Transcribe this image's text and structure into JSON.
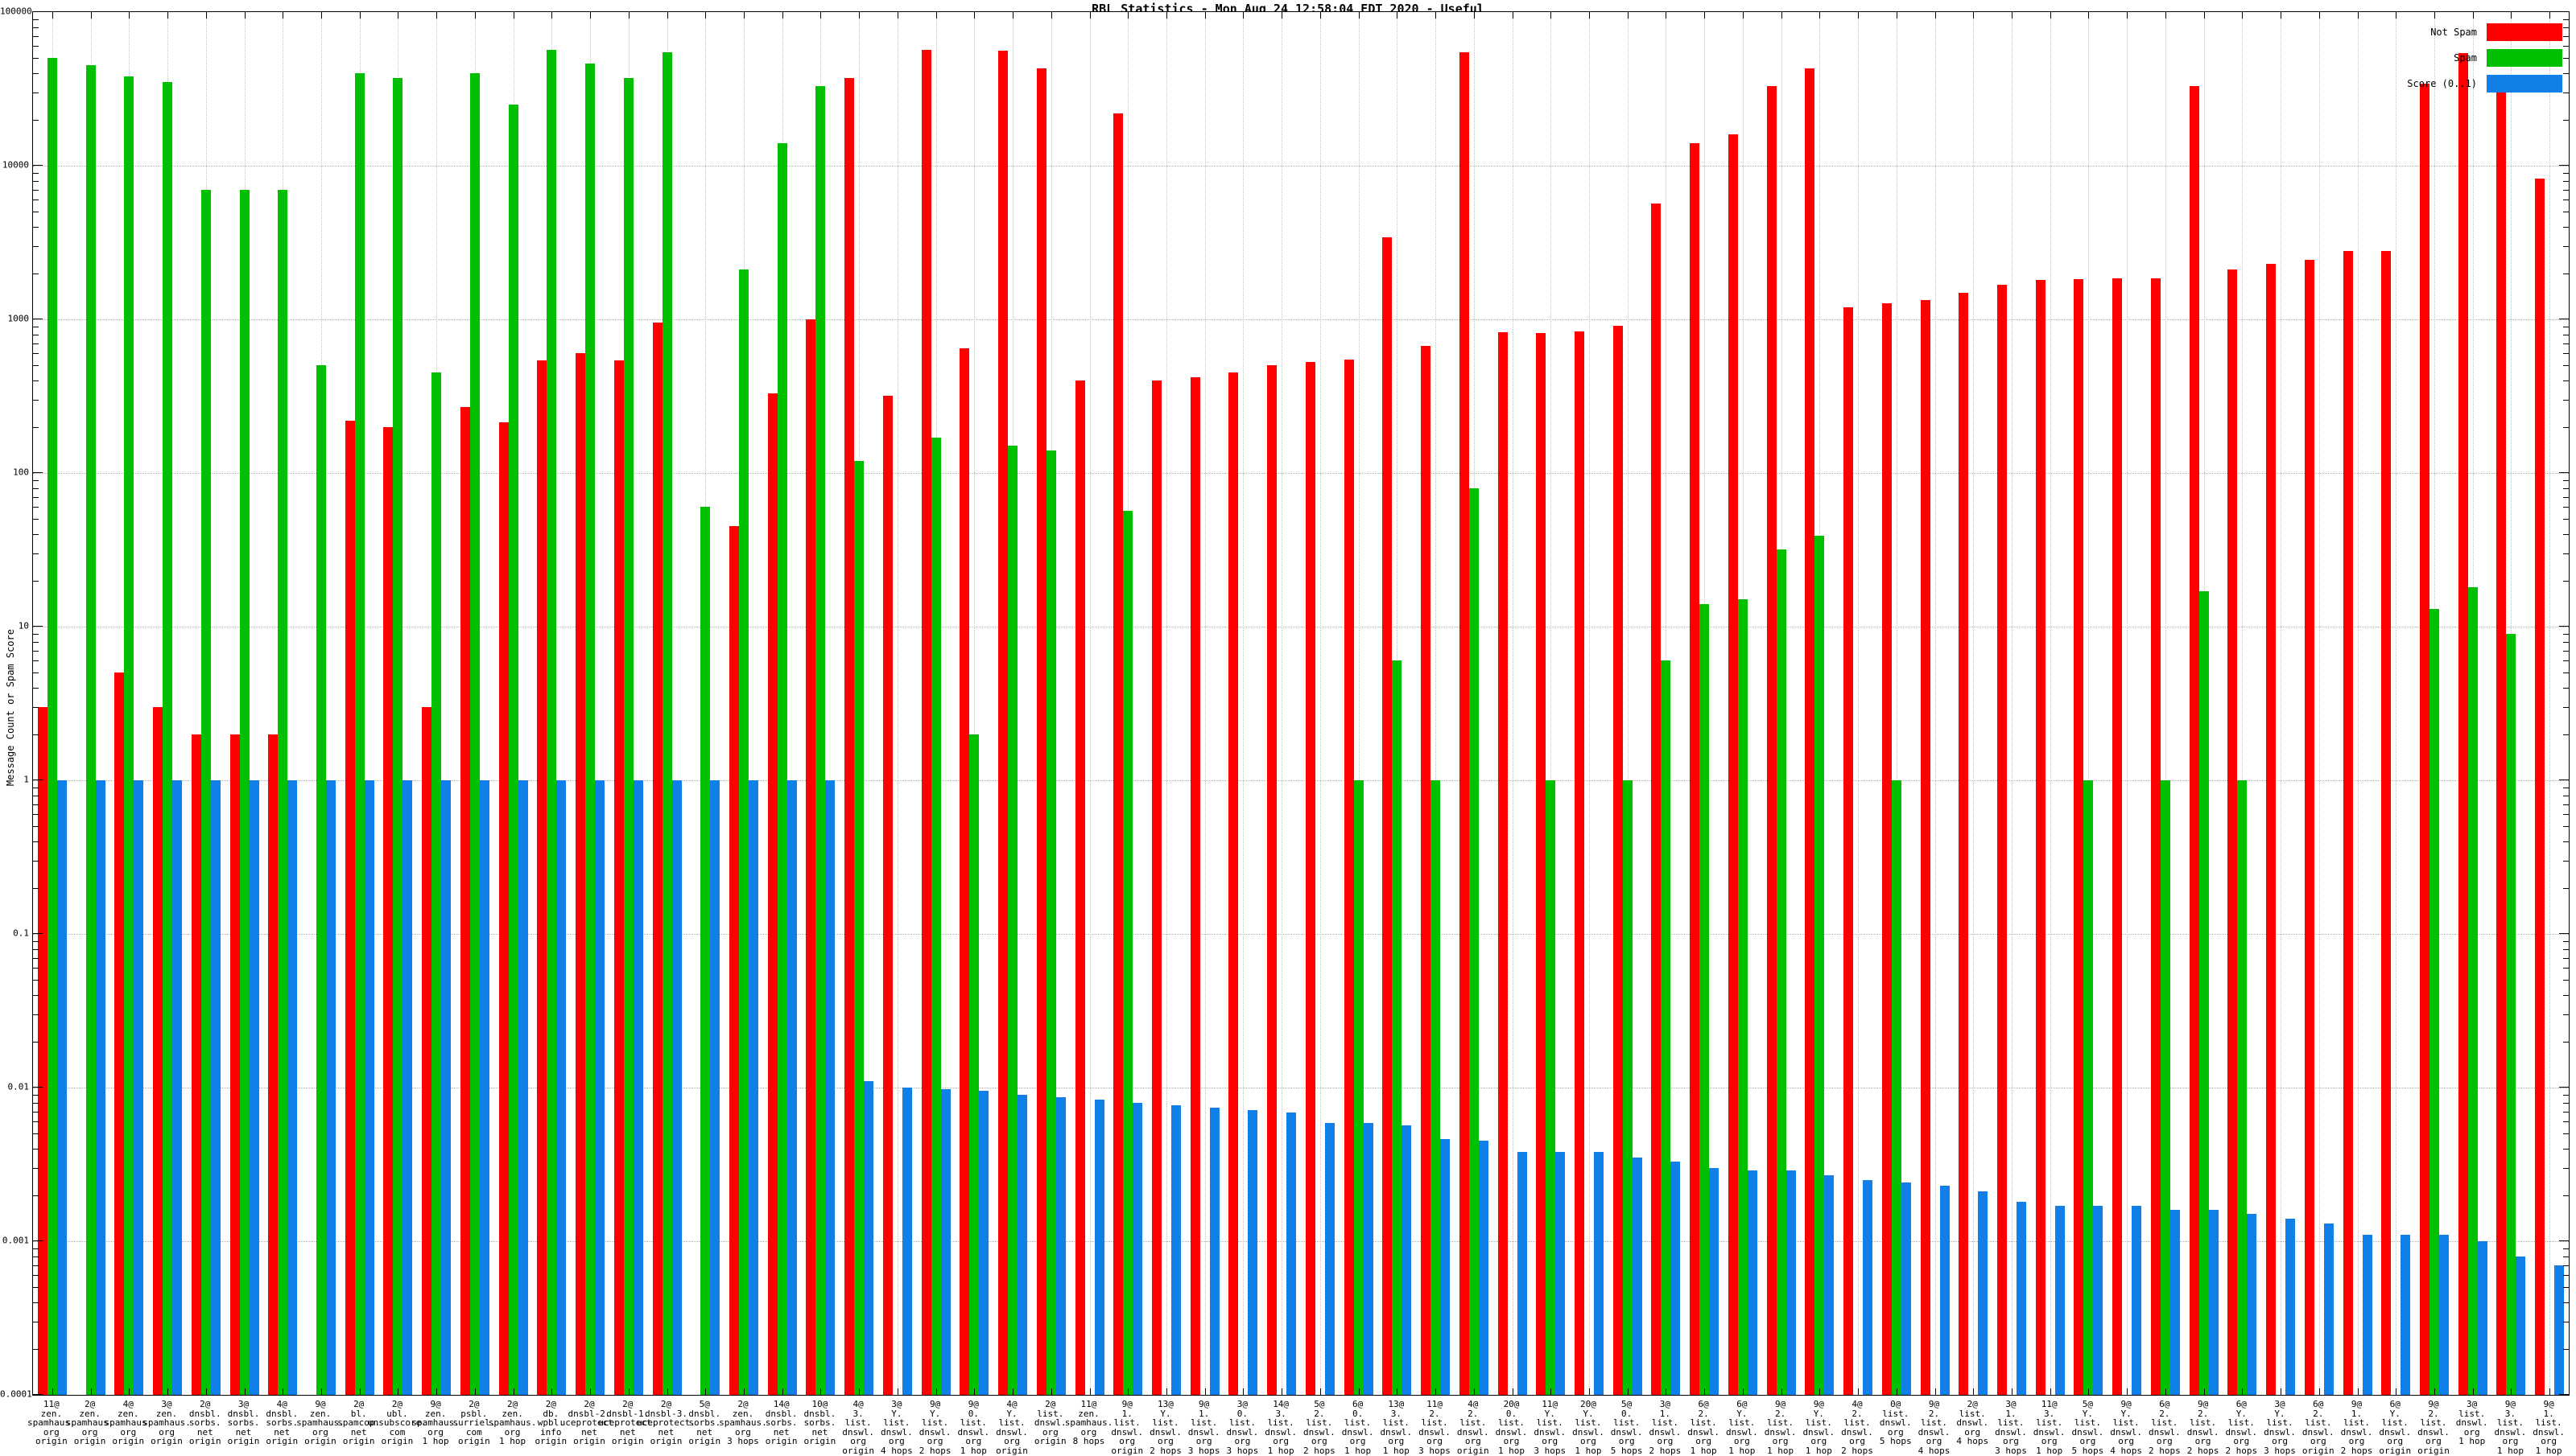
{
  "chart_data": {
    "type": "bar",
    "scale": "log-y",
    "title": "RBL Statistics - Mon Aug 24 12:58:04 EDT 2020 - Useful",
    "ylabel": "Message Count or Spam Score",
    "xlabel": "",
    "ylim": [
      0.0001,
      100000
    ],
    "grid": true,
    "legend_position": "top-right",
    "y_ticks": [
      "100000",
      "10000",
      "1000",
      "100",
      "10",
      "1",
      "0.1",
      "0.01",
      "0.001",
      "0.0001"
    ],
    "series": [
      {
        "name": "Not Spam",
        "key": "not_spam",
        "color": "#ff0000"
      },
      {
        "name": "Spam",
        "key": "spam",
        "color": "#00c000"
      },
      {
        "name": "Score (0..1)",
        "key": "score",
        "color": "#1080e8"
      }
    ],
    "groups": [
      {
        "label": [
          "11@",
          "zen.",
          "spamhaus.",
          "org",
          "origin"
        ],
        "not_spam": 3,
        "spam": 50000,
        "score": 1
      },
      {
        "label": [
          "2@",
          "zen.",
          "spamhaus.",
          "org",
          "origin"
        ],
        "not_spam": 0,
        "spam": 45000,
        "score": 1
      },
      {
        "label": [
          "4@",
          "zen.",
          "spamhaus.",
          "org",
          "origin"
        ],
        "not_spam": 5,
        "spam": 38000,
        "score": 1
      },
      {
        "label": [
          "3@",
          "zen.",
          "spamhaus.",
          "org",
          "origin"
        ],
        "not_spam": 3,
        "spam": 35000,
        "score": 1
      },
      {
        "label": [
          "2@",
          "dnsbl.",
          "sorbs.",
          "net",
          "origin"
        ],
        "not_spam": 2,
        "spam": 7000,
        "score": 1
      },
      {
        "label": [
          "3@",
          "dnsbl.",
          "sorbs.",
          "net",
          "origin"
        ],
        "not_spam": 2,
        "spam": 7000,
        "score": 1
      },
      {
        "label": [
          "4@",
          "dnsbl.",
          "sorbs.",
          "net",
          "origin"
        ],
        "not_spam": 2,
        "spam": 7000,
        "score": 1
      },
      {
        "label": [
          "9@",
          "zen.",
          "spamhaus.",
          "org",
          "origin"
        ],
        "not_spam": 0,
        "spam": 500,
        "score": 1
      },
      {
        "label": [
          "2@",
          "bl.",
          "spamcop.",
          "net",
          "origin"
        ],
        "not_spam": 220,
        "spam": 40000,
        "score": 1
      },
      {
        "label": [
          "2@",
          "ubl.",
          "unsubscore.",
          "com",
          "origin"
        ],
        "not_spam": 200,
        "spam": 37000,
        "score": 1
      },
      {
        "label": [
          "9@",
          "zen.",
          "spamhaus.",
          "org",
          "1 hop"
        ],
        "not_spam": 3,
        "spam": 450,
        "score": 1
      },
      {
        "label": [
          "2@",
          "psbl.",
          "surriel.",
          "com",
          "origin"
        ],
        "not_spam": 270,
        "spam": 40000,
        "score": 1
      },
      {
        "label": [
          "2@",
          "zen.",
          "spamhaus.",
          "org",
          "1 hop"
        ],
        "not_spam": 215,
        "spam": 25000,
        "score": 1
      },
      {
        "label": [
          "2@",
          "db.",
          "wpbl.",
          "info",
          "origin"
        ],
        "not_spam": 540,
        "spam": 57000,
        "score": 1
      },
      {
        "label": [
          "2@",
          "dnsbl-2.",
          "uceprotect.",
          "net",
          "origin"
        ],
        "not_spam": 600,
        "spam": 46000,
        "score": 1
      },
      {
        "label": [
          "2@",
          "dnsbl-1.",
          "uceprotect.",
          "net",
          "origin"
        ],
        "not_spam": 540,
        "spam": 37000,
        "score": 1
      },
      {
        "label": [
          "2@",
          "dnsbl-3.",
          "uceprotect.",
          "net",
          "origin"
        ],
        "not_spam": 950,
        "spam": 55000,
        "score": 1
      },
      {
        "label": [
          "5@",
          "dnsbl.",
          "sorbs.",
          "net",
          "origin"
        ],
        "not_spam": 0,
        "spam": 60,
        "score": 1
      },
      {
        "label": [
          "2@",
          "zen.",
          "spamhaus.",
          "org",
          "3 hops"
        ],
        "not_spam": 45,
        "spam": 2100,
        "score": 1
      },
      {
        "label": [
          "14@",
          "dnsbl.",
          "sorbs.",
          "net",
          "origin"
        ],
        "not_spam": 330,
        "spam": 14000,
        "score": 1
      },
      {
        "label": [
          "10@",
          "dnsbl.",
          "sorbs.",
          "net",
          "origin"
        ],
        "not_spam": 1000,
        "spam": 33000,
        "score": 1
      },
      {
        "label": [
          "4@",
          "3.",
          "list.",
          "dnswl.",
          "org",
          "origin"
        ],
        "not_spam": 37000,
        "spam": 120,
        "score": 0.011
      },
      {
        "label": [
          "3@",
          "Y.",
          "list.",
          "dnswl.",
          "org",
          "4 hops"
        ],
        "not_spam": 320,
        "spam": 0,
        "score": 0.01
      },
      {
        "label": [
          "9@",
          "Y.",
          "list.",
          "dnswl.",
          "org",
          "2 hops"
        ],
        "not_spam": 57000,
        "spam": 170,
        "score": 0.0098
      },
      {
        "label": [
          "9@",
          "0.",
          "list.",
          "dnswl.",
          "org",
          "1 hop"
        ],
        "not_spam": 650,
        "spam": 2,
        "score": 0.0095
      },
      {
        "label": [
          "4@",
          "Y.",
          "list.",
          "dnswl.",
          "org",
          "origin"
        ],
        "not_spam": 56000,
        "spam": 150,
        "score": 0.009
      },
      {
        "label": [
          "2@",
          "list.",
          "dnswl.",
          "org",
          "origin"
        ],
        "not_spam": 43000,
        "spam": 140,
        "score": 0.0087
      },
      {
        "label": [
          "11@",
          "zen.",
          "spamhaus.",
          "org",
          "8 hops"
        ],
        "not_spam": 400,
        "spam": 0,
        "score": 0.0083
      },
      {
        "label": [
          "9@",
          "1.",
          "list.",
          "dnswl.",
          "org",
          "origin"
        ],
        "not_spam": 22000,
        "spam": 57,
        "score": 0.008
      },
      {
        "label": [
          "13@",
          "Y.",
          "list.",
          "dnswl.",
          "org",
          "2 hops"
        ],
        "not_spam": 400,
        "spam": 0,
        "score": 0.0077
      },
      {
        "label": [
          "9@",
          "1.",
          "list.",
          "dnswl.",
          "org",
          "3 hops"
        ],
        "not_spam": 420,
        "spam": 0,
        "score": 0.0074
      },
      {
        "label": [
          "3@",
          "0.",
          "list.",
          "dnswl.",
          "org",
          "3 hops"
        ],
        "not_spam": 450,
        "spam": 0,
        "score": 0.0071
      },
      {
        "label": [
          "14@",
          "3.",
          "list.",
          "dnswl.",
          "org",
          "1 hop"
        ],
        "not_spam": 500,
        "spam": 0,
        "score": 0.0069
      },
      {
        "label": [
          "5@",
          "2.",
          "list.",
          "dnswl.",
          "org",
          "2 hops"
        ],
        "not_spam": 530,
        "spam": 0,
        "score": 0.0059
      },
      {
        "label": [
          "6@",
          "0.",
          "list.",
          "dnswl.",
          "org",
          "1 hop"
        ],
        "not_spam": 545,
        "spam": 1,
        "score": 0.0059
      },
      {
        "label": [
          "13@",
          "3.",
          "list.",
          "dnswl.",
          "org",
          "1 hop"
        ],
        "not_spam": 3400,
        "spam": 6,
        "score": 0.0057
      },
      {
        "label": [
          "11@",
          "2.",
          "list.",
          "dnswl.",
          "org",
          "3 hops"
        ],
        "not_spam": 670,
        "spam": 1,
        "score": 0.0046
      },
      {
        "label": [
          "4@",
          "2.",
          "list.",
          "dnswl.",
          "org",
          "origin"
        ],
        "not_spam": 55000,
        "spam": 80,
        "score": 0.0045
      },
      {
        "label": [
          "20@",
          "0.",
          "list.",
          "dnswl.",
          "org",
          "1 hop"
        ],
        "not_spam": 820,
        "spam": 0,
        "score": 0.0038
      },
      {
        "label": [
          "11@",
          "Y.",
          "list.",
          "dnswl.",
          "org",
          "3 hops"
        ],
        "not_spam": 815,
        "spam": 1,
        "score": 0.0038
      },
      {
        "label": [
          "20@",
          "Y.",
          "list.",
          "dnswl.",
          "org",
          "1 hop"
        ],
        "not_spam": 830,
        "spam": 0,
        "score": 0.0038
      },
      {
        "label": [
          "5@",
          "0.",
          "list.",
          "dnswl.",
          "org",
          "5 hops"
        ],
        "not_spam": 910,
        "spam": 1,
        "score": 0.0035
      },
      {
        "label": [
          "3@",
          "1.",
          "list.",
          "dnswl.",
          "org",
          "2 hops"
        ],
        "not_spam": 5700,
        "spam": 6,
        "score": 0.0033
      },
      {
        "label": [
          "6@",
          "2.",
          "list.",
          "dnswl.",
          "org",
          "1 hop"
        ],
        "not_spam": 14000,
        "spam": 14,
        "score": 0.003
      },
      {
        "label": [
          "6@",
          "Y.",
          "list.",
          "dnswl.",
          "org",
          "1 hop"
        ],
        "not_spam": 16000,
        "spam": 15,
        "score": 0.0029
      },
      {
        "label": [
          "9@",
          "2.",
          "list.",
          "dnswl.",
          "org",
          "1 hop"
        ],
        "not_spam": 33000,
        "spam": 32,
        "score": 0.0029
      },
      {
        "label": [
          "9@",
          "Y.",
          "list.",
          "dnswl.",
          "org",
          "1 hop"
        ],
        "not_spam": 43000,
        "spam": 39,
        "score": 0.0027
      },
      {
        "label": [
          "4@",
          "2.",
          "list.",
          "dnswl.",
          "org",
          "2 hops"
        ],
        "not_spam": 1200,
        "spam": 0,
        "score": 0.0025
      },
      {
        "label": [
          "0@",
          "list.",
          "dnswl.",
          "org",
          "5 hops"
        ],
        "not_spam": 1280,
        "spam": 1,
        "score": 0.0024
      },
      {
        "label": [
          "9@",
          "2.",
          "list.",
          "dnswl.",
          "org",
          "4 hops"
        ],
        "not_spam": 1340,
        "spam": 0,
        "score": 0.0023
      },
      {
        "label": [
          "2@",
          "list.",
          "dnswl.",
          "org",
          "4 hops"
        ],
        "not_spam": 1480,
        "spam": 0,
        "score": 0.0021
      },
      {
        "label": [
          "3@",
          "1.",
          "list.",
          "dnswl.",
          "org",
          "3 hops"
        ],
        "not_spam": 1670,
        "spam": 0,
        "score": 0.0018
      },
      {
        "label": [
          "11@",
          "3.",
          "list.",
          "dnswl.",
          "org",
          "1 hop"
        ],
        "not_spam": 1800,
        "spam": 0,
        "score": 0.0017
      },
      {
        "label": [
          "5@",
          "Y.",
          "list.",
          "dnswl.",
          "org",
          "5 hops"
        ],
        "not_spam": 1830,
        "spam": 1,
        "score": 0.0017
      },
      {
        "label": [
          "9@",
          "Y.",
          "list.",
          "dnswl.",
          "org",
          "4 hops"
        ],
        "not_spam": 1860,
        "spam": 0,
        "score": 0.0017
      },
      {
        "label": [
          "6@",
          "2.",
          "list.",
          "dnswl.",
          "org",
          "2 hops"
        ],
        "not_spam": 1860,
        "spam": 1,
        "score": 0.0016
      },
      {
        "label": [
          "9@",
          "2.",
          "list.",
          "dnswl.",
          "org",
          "2 hops"
        ],
        "not_spam": 33000,
        "spam": 17,
        "score": 0.0016
      },
      {
        "label": [
          "6@",
          "Y.",
          "list.",
          "dnswl.",
          "org",
          "2 hops"
        ],
        "not_spam": 2100,
        "spam": 1,
        "score": 0.0015
      },
      {
        "label": [
          "3@",
          "Y.",
          "list.",
          "dnswl.",
          "org",
          "3 hops"
        ],
        "not_spam": 2300,
        "spam": 0,
        "score": 0.0014
      },
      {
        "label": [
          "6@",
          "2.",
          "list.",
          "dnswl.",
          "org",
          "origin"
        ],
        "not_spam": 2450,
        "spam": 0,
        "score": 0.0013
      },
      {
        "label": [
          "9@",
          "1.",
          "list.",
          "dnswl.",
          "org",
          "2 hops"
        ],
        "not_spam": 2800,
        "spam": 0,
        "score": 0.0011
      },
      {
        "label": [
          "6@",
          "Y.",
          "list.",
          "dnswl.",
          "org",
          "origin"
        ],
        "not_spam": 2800,
        "spam": 0,
        "score": 0.0011
      },
      {
        "label": [
          "9@",
          "2.",
          "list.",
          "dnswl.",
          "org",
          "origin"
        ],
        "not_spam": 34000,
        "spam": 13,
        "score": 0.0011
      },
      {
        "label": [
          "3@",
          "list.",
          "dnswl.",
          "org",
          "1 hop"
        ],
        "not_spam": 54000,
        "spam": 18,
        "score": 0.001
      },
      {
        "label": [
          "9@",
          "3.",
          "list.",
          "dnswl.",
          "org",
          "1 hop"
        ],
        "not_spam": 39000,
        "spam": 9,
        "score": 0.0008
      },
      {
        "label": [
          "9@",
          "1.",
          "list.",
          "dnswl.",
          "org",
          "1 hop"
        ],
        "not_spam": 8200,
        "spam": 0,
        "score": 0.0007
      }
    ]
  }
}
